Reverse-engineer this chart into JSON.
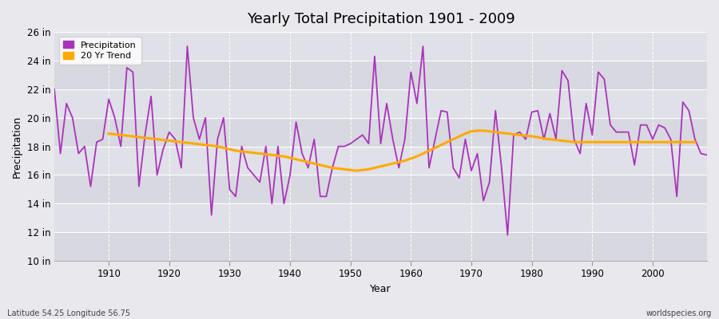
{
  "title": "Yearly Total Precipitation 1901 - 2009",
  "xlabel": "Year",
  "ylabel": "Precipitation",
  "x_label_bottom_left": "Latitude 54.25 Longitude 56.75",
  "x_label_bottom_right": "worldspecies.org",
  "bg_color": "#e8e8ed",
  "plot_bg_color": "#e0e0e8",
  "precipitation_color": "#aa33bb",
  "trend_color": "#ffaa00",
  "ylim": [
    10,
    26
  ],
  "ytick_labels": [
    "10 in",
    "12 in",
    "14 in",
    "16 in",
    "18 in",
    "20 in",
    "22 in",
    "24 in",
    "26 in"
  ],
  "ytick_values": [
    10,
    12,
    14,
    16,
    18,
    20,
    22,
    24,
    26
  ],
  "years": [
    1901,
    1902,
    1903,
    1904,
    1905,
    1906,
    1907,
    1908,
    1909,
    1910,
    1911,
    1912,
    1913,
    1914,
    1915,
    1916,
    1917,
    1918,
    1919,
    1920,
    1921,
    1922,
    1923,
    1924,
    1925,
    1926,
    1927,
    1928,
    1929,
    1930,
    1931,
    1932,
    1933,
    1934,
    1935,
    1936,
    1937,
    1938,
    1939,
    1940,
    1941,
    1942,
    1943,
    1944,
    1945,
    1946,
    1947,
    1948,
    1949,
    1950,
    1951,
    1952,
    1953,
    1954,
    1955,
    1956,
    1957,
    1958,
    1959,
    1960,
    1961,
    1962,
    1963,
    1964,
    1965,
    1966,
    1967,
    1968,
    1969,
    1970,
    1971,
    1972,
    1973,
    1974,
    1975,
    1976,
    1977,
    1978,
    1979,
    1980,
    1981,
    1982,
    1983,
    1984,
    1985,
    1986,
    1987,
    1988,
    1989,
    1990,
    1991,
    1992,
    1993,
    1994,
    1995,
    1996,
    1997,
    1998,
    1999,
    2000,
    2001,
    2002,
    2003,
    2004,
    2005,
    2006,
    2007,
    2008,
    2009
  ],
  "precipitation": [
    22.0,
    17.5,
    21.0,
    20.0,
    17.5,
    18.0,
    15.2,
    18.3,
    18.5,
    21.3,
    20.0,
    18.0,
    23.5,
    23.2,
    15.2,
    18.8,
    21.5,
    16.0,
    17.8,
    19.0,
    18.5,
    16.5,
    25.0,
    20.0,
    18.5,
    20.0,
    13.2,
    18.5,
    20.0,
    15.0,
    14.5,
    18.0,
    16.5,
    16.0,
    15.5,
    18.0,
    14.0,
    18.0,
    14.0,
    16.0,
    19.7,
    17.5,
    16.5,
    18.5,
    14.5,
    14.5,
    16.5,
    18.0,
    18.0,
    18.2,
    18.5,
    18.8,
    18.2,
    24.3,
    18.2,
    21.0,
    18.5,
    16.5,
    18.5,
    23.2,
    21.0,
    25.0,
    16.5,
    18.5,
    20.5,
    20.4,
    16.5,
    15.8,
    18.5,
    16.3,
    17.5,
    14.2,
    15.5,
    20.5,
    16.5,
    11.8,
    18.8,
    19.0,
    18.5,
    20.4,
    20.5,
    18.5,
    20.3,
    18.5,
    23.3,
    22.6,
    18.5,
    17.5,
    21.0,
    18.8,
    23.2,
    22.7,
    19.5,
    19.0,
    19.0,
    19.0,
    16.7,
    19.5,
    19.5,
    18.5,
    19.5,
    19.3,
    18.5,
    14.5,
    21.1,
    20.5,
    18.5,
    17.5,
    17.4
  ],
  "trend": [
    null,
    null,
    null,
    null,
    null,
    null,
    null,
    null,
    null,
    18.9,
    18.85,
    18.8,
    18.75,
    18.7,
    18.65,
    18.6,
    18.55,
    18.5,
    18.45,
    18.4,
    18.35,
    18.3,
    18.25,
    18.2,
    18.15,
    18.1,
    18.05,
    18.0,
    17.9,
    17.8,
    17.7,
    17.65,
    17.6,
    17.55,
    17.5,
    17.45,
    17.4,
    17.35,
    17.3,
    17.2,
    17.1,
    17.0,
    16.9,
    16.8,
    16.7,
    16.6,
    16.5,
    16.45,
    16.4,
    16.35,
    16.3,
    16.35,
    16.4,
    16.5,
    16.6,
    16.7,
    16.8,
    16.9,
    17.0,
    17.15,
    17.3,
    17.5,
    17.7,
    17.9,
    18.1,
    18.3,
    18.5,
    18.7,
    18.9,
    19.05,
    19.1,
    19.1,
    19.05,
    19.0,
    18.95,
    18.9,
    18.85,
    18.8,
    18.75,
    18.7,
    18.65,
    18.55,
    18.5,
    18.45,
    18.4,
    18.35,
    18.3,
    18.3,
    18.3,
    18.3,
    18.3,
    18.3,
    18.3,
    18.3,
    18.3,
    18.3,
    18.3,
    18.3,
    18.3,
    18.3,
    18.3,
    18.3,
    18.3,
    18.3,
    18.3,
    18.3,
    18.3
  ]
}
